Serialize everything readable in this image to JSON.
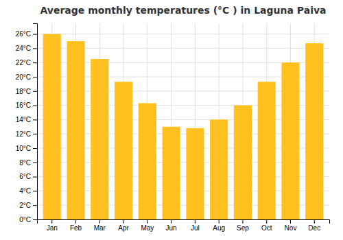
{
  "chart_data": {
    "type": "bar",
    "title": "Average monthly temperatures (°C ) in Laguna Paiva",
    "categories": [
      "Jan",
      "Feb",
      "Mar",
      "Apr",
      "May",
      "Jun",
      "Jul",
      "Aug",
      "Sep",
      "Oct",
      "Nov",
      "Dec"
    ],
    "values": [
      26,
      25,
      22.5,
      19.3,
      16.3,
      13,
      12.8,
      14,
      16,
      19.3,
      22,
      24.7
    ],
    "color": "#FFC020",
    "ylim": [
      0,
      27.5
    ],
    "yticks": [
      {
        "value": 0,
        "label": "0°C"
      },
      {
        "value": 2,
        "label": "2°C"
      },
      {
        "value": 4,
        "label": "4°C"
      },
      {
        "value": 6,
        "label": "6°C"
      },
      {
        "value": 8,
        "label": "8°C"
      },
      {
        "value": 10,
        "label": "10°C"
      },
      {
        "value": 12,
        "label": "12°C"
      },
      {
        "value": 14,
        "label": "14°C"
      },
      {
        "value": 16,
        "label": "16°C"
      },
      {
        "value": 18,
        "label": "18°C"
      },
      {
        "value": 20,
        "label": "20°C"
      },
      {
        "value": 22,
        "label": "22°C"
      },
      {
        "value": 24,
        "label": "24°C"
      },
      {
        "value": 26,
        "label": "26°C"
      }
    ],
    "grid": true
  }
}
